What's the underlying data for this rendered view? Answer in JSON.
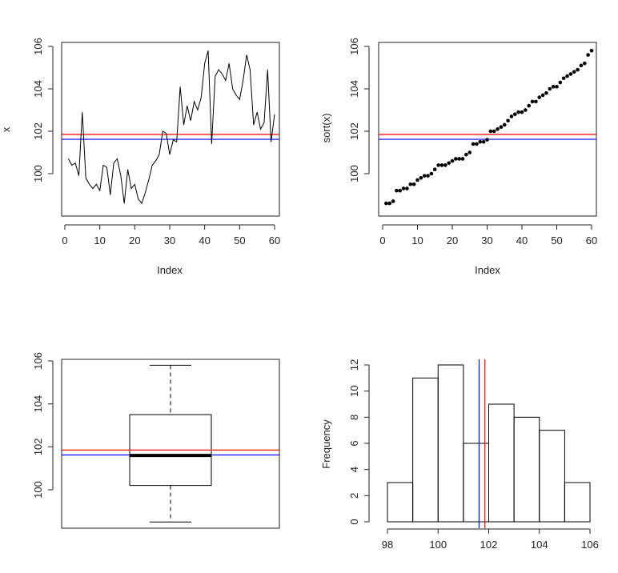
{
  "chart_data": [
    {
      "type": "line",
      "xlabel": "Index",
      "ylabel": "x",
      "xlim": [
        0,
        60
      ],
      "ylim": [
        98.5,
        106
      ],
      "xticks": [
        "0",
        "10",
        "20",
        "30",
        "40",
        "50",
        "60"
      ],
      "yticks": [
        "100",
        "102",
        "104",
        "106"
      ],
      "series": [
        {
          "values": [
            100.7,
            100.4,
            100.5,
            99.9,
            102.9,
            99.8,
            99.5,
            99.3,
            99.5,
            99.2,
            100.4,
            100.3,
            99.0,
            100.5,
            100.7,
            99.9,
            98.6,
            100.2,
            99.3,
            99.5,
            98.8,
            98.6,
            99.1,
            99.7,
            100.4,
            100.6,
            100.9,
            102.0,
            101.9,
            100.9,
            101.6,
            101.5,
            104.1,
            102.3,
            103.2,
            102.5,
            103.4,
            103.0,
            103.6,
            105.2,
            105.8,
            101.4,
            104.6,
            104.9,
            104.7,
            104.4,
            105.2,
            104.0,
            103.7,
            103.5,
            104.4,
            105.6,
            104.9,
            102.3,
            102.9,
            102.1,
            102.4,
            104.9,
            101.5,
            102.8
          ]
        }
      ],
      "hlines": [
        {
          "value": 101.85,
          "color": "#ff0000"
        },
        {
          "value": 101.62,
          "color": "#0000ff"
        }
      ]
    },
    {
      "type": "scatter",
      "xlabel": "Index",
      "ylabel": "sort(x)",
      "xlim": [
        0,
        60
      ],
      "ylim": [
        98.5,
        106
      ],
      "xticks": [
        "0",
        "10",
        "20",
        "30",
        "40",
        "50",
        "60"
      ],
      "yticks": [
        "100",
        "102",
        "104",
        "106"
      ],
      "series": [
        {
          "values": [
            98.6,
            98.6,
            98.7,
            99.2,
            99.2,
            99.3,
            99.3,
            99.5,
            99.5,
            99.7,
            99.8,
            99.9,
            99.9,
            100.0,
            100.2,
            100.4,
            100.4,
            100.4,
            100.5,
            100.6,
            100.7,
            100.7,
            100.7,
            100.9,
            101.0,
            101.4,
            101.4,
            101.5,
            101.5,
            101.6,
            102.0,
            102.0,
            102.1,
            102.2,
            102.3,
            102.5,
            102.7,
            102.8,
            102.9,
            102.9,
            103.0,
            103.2,
            103.4,
            103.4,
            103.6,
            103.7,
            103.8,
            104.0,
            104.1,
            104.1,
            104.3,
            104.5,
            104.6,
            104.7,
            104.8,
            104.9,
            105.1,
            105.2,
            105.6,
            105.8
          ]
        }
      ],
      "hlines": [
        {
          "value": 101.85,
          "color": "#ff0000"
        },
        {
          "value": 101.62,
          "color": "#0000ff"
        }
      ]
    },
    {
      "type": "box",
      "ylim": [
        98.5,
        106
      ],
      "yticks": [
        "100",
        "102",
        "104",
        "106"
      ],
      "stats": {
        "min": 98.5,
        "q1": 100.2,
        "median": 101.6,
        "q3": 103.5,
        "max": 105.8
      },
      "hlines": [
        {
          "value": 101.85,
          "color": "#ff0000"
        },
        {
          "value": 101.62,
          "color": "#0000ff"
        }
      ]
    },
    {
      "type": "histogram",
      "ylabel": "Frequency",
      "xlim": [
        98,
        106
      ],
      "ylim": [
        0,
        12
      ],
      "xticks": [
        "98",
        "100",
        "102",
        "104",
        "106"
      ],
      "yticks": [
        "0",
        "2",
        "4",
        "6",
        "8",
        "10",
        "12"
      ],
      "bins": [
        [
          98,
          99
        ],
        [
          99,
          100
        ],
        [
          100,
          101
        ],
        [
          101,
          102
        ],
        [
          102,
          103
        ],
        [
          103,
          104
        ],
        [
          104,
          105
        ],
        [
          105,
          106
        ]
      ],
      "counts": [
        3,
        11,
        12,
        6,
        9,
        8,
        7,
        3
      ],
      "vlines": [
        {
          "value": 101.85,
          "color": "#ff0000"
        },
        {
          "value": 101.62,
          "color": "#0000ff"
        }
      ]
    }
  ]
}
